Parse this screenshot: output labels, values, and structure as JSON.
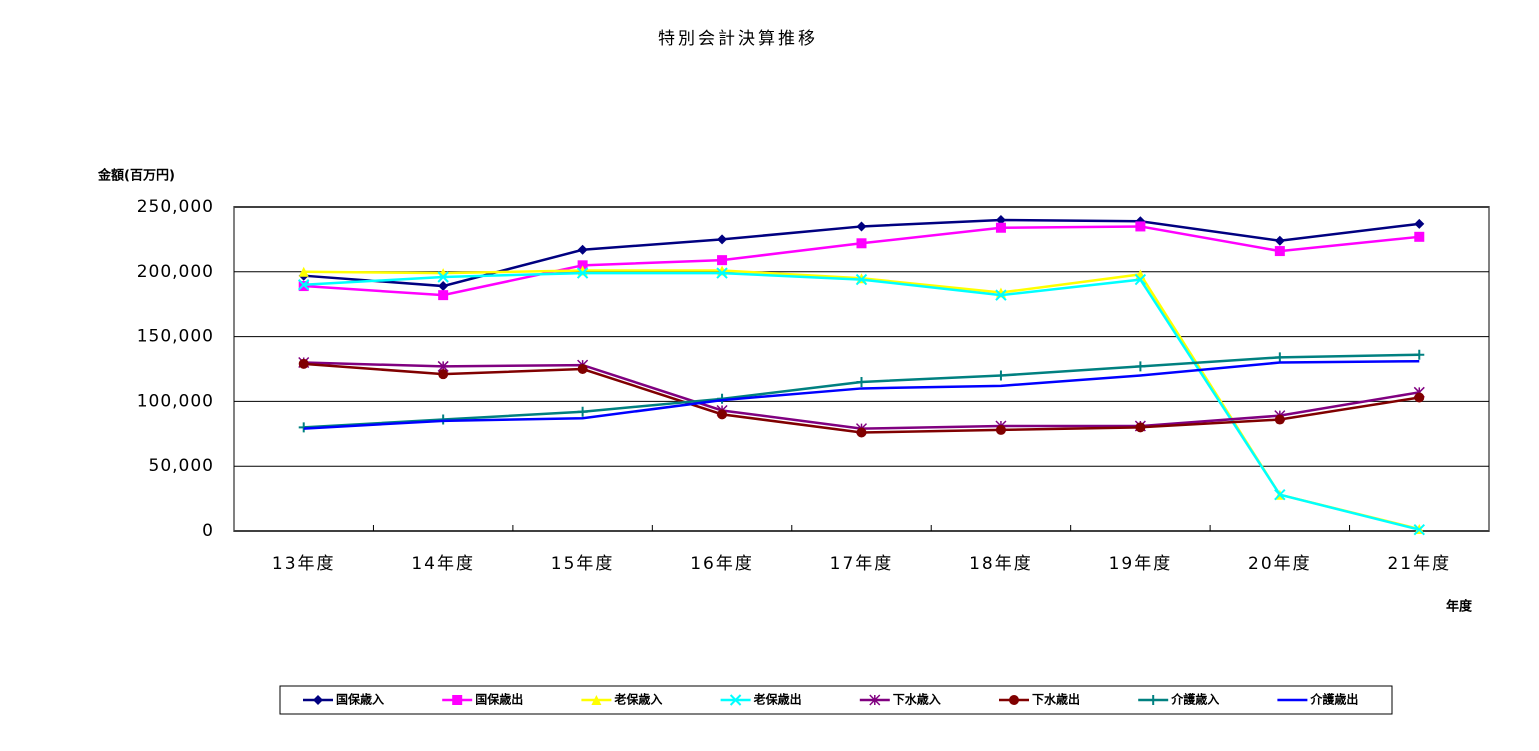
{
  "chart_data": {
    "type": "line",
    "title": "特別会計決算推移",
    "y_label": "金額(百万円)",
    "x_label": "年度",
    "categories": [
      "13年度",
      "14年度",
      "15年度",
      "16年度",
      "17年度",
      "18年度",
      "19年度",
      "20年度",
      "21年度"
    ],
    "ylim": [
      0,
      250000
    ],
    "yticks": [
      0,
      {
        "value": 50000,
        "label": "50,000"
      },
      {
        "value": 100000,
        "label": "100,000"
      },
      {
        "value": 150000,
        "label": "150,000"
      },
      {
        "value": 200000,
        "label": "200,000"
      },
      {
        "value": 250000,
        "label": "250,000"
      }
    ],
    "grid": true,
    "series": [
      {
        "name": "国保歳入",
        "color": "#000080",
        "marker": "diamond",
        "values": [
          197000,
          189000,
          217000,
          225000,
          235000,
          240000,
          239000,
          224000,
          237000
        ]
      },
      {
        "name": "国保歳出",
        "color": "#FF00FF",
        "marker": "square",
        "values": [
          189000,
          182000,
          205000,
          209000,
          222000,
          234000,
          235000,
          216000,
          227000
        ]
      },
      {
        "name": "老保歳入",
        "color": "#FFFF00",
        "marker": "triangle",
        "values": [
          200000,
          199000,
          201000,
          201000,
          195000,
          184000,
          198000,
          28000,
          1500
        ]
      },
      {
        "name": "老保歳出",
        "color": "#00FFFF",
        "marker": "x",
        "values": [
          190000,
          196000,
          199000,
          199000,
          194000,
          182000,
          194000,
          28000,
          1000
        ]
      },
      {
        "name": "下水歳入",
        "color": "#800080",
        "marker": "star",
        "values": [
          130000,
          127000,
          128000,
          93000,
          79000,
          81000,
          81000,
          89000,
          107000
        ]
      },
      {
        "name": "下水歳出",
        "color": "#800000",
        "marker": "circle",
        "values": [
          129000,
          121000,
          125000,
          90000,
          76000,
          78000,
          80000,
          86000,
          103000
        ]
      },
      {
        "name": "介護歳入",
        "color": "#008080",
        "marker": "plus",
        "values": [
          80000,
          86000,
          92000,
          102000,
          115000,
          120000,
          127000,
          134000,
          136000
        ]
      },
      {
        "name": "介護歳出",
        "color": "#0000FF",
        "marker": "none",
        "values": [
          79000,
          85000,
          87000,
          101000,
          110000,
          112000,
          120000,
          130000,
          131000
        ]
      }
    ]
  }
}
